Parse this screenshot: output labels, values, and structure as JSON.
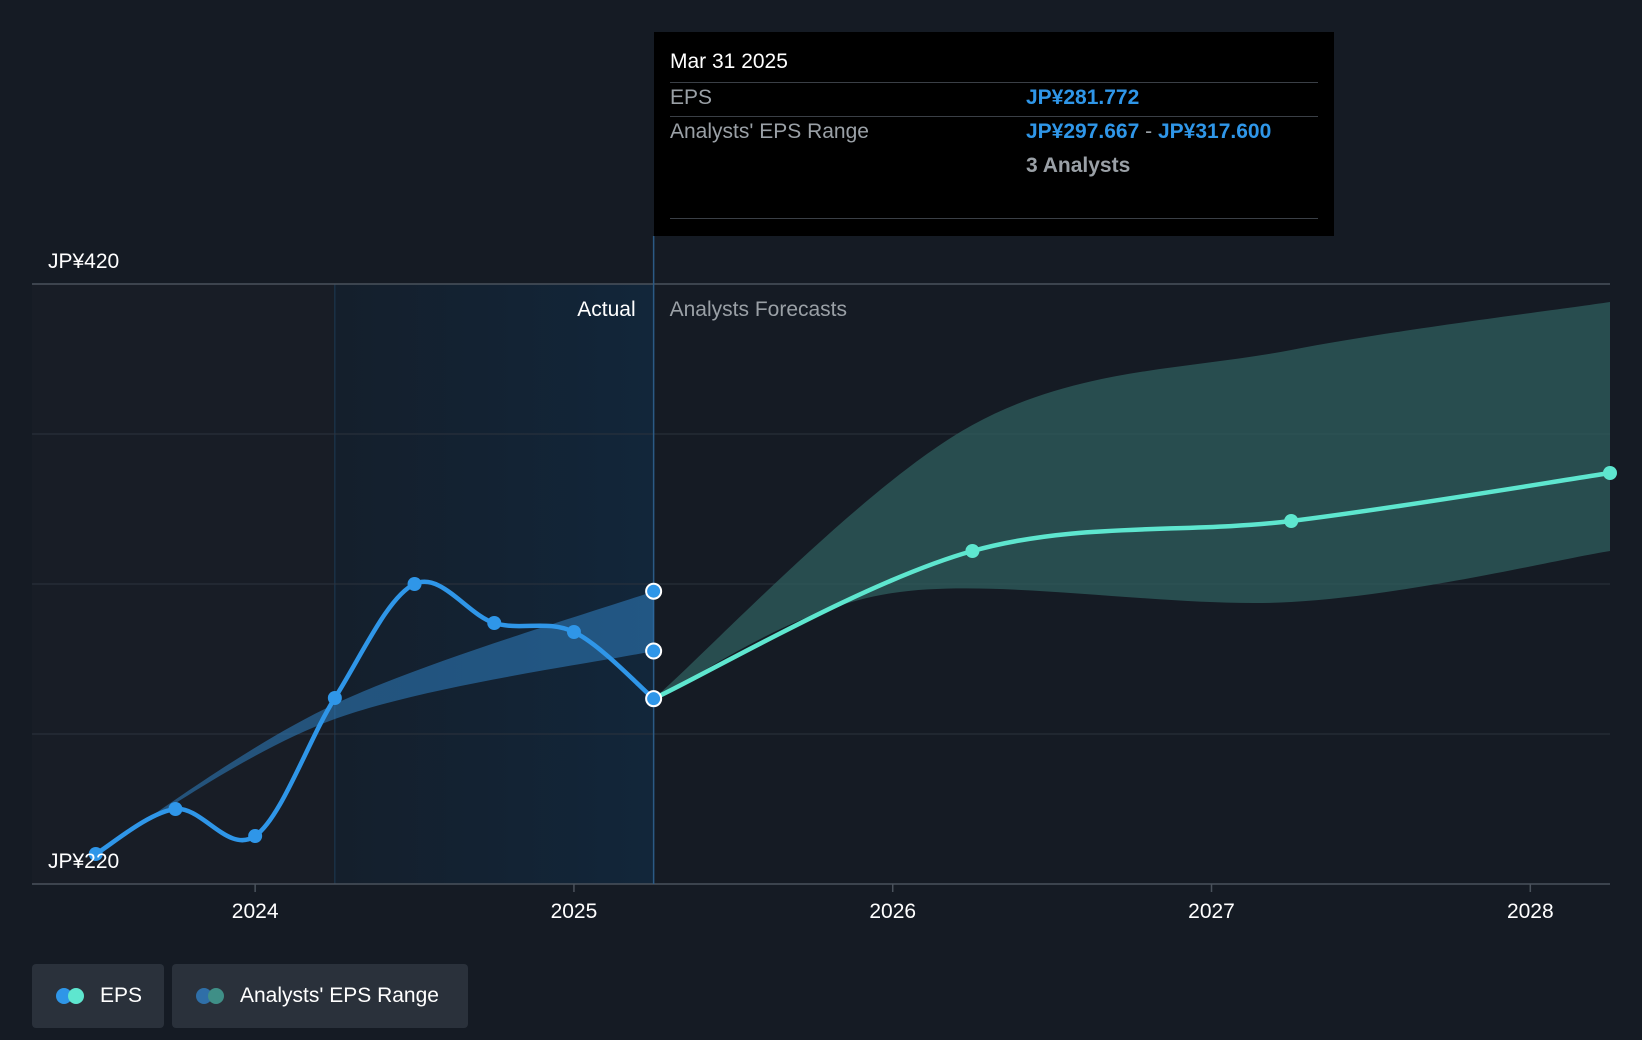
{
  "colors": {
    "background": "#151b24",
    "actual_line": "#2f96e8",
    "forecast_line": "#5ee6cf",
    "actual_band": "#2f7fc1",
    "forecast_band": "#2f5f5e",
    "highlight_region": "#12263a",
    "gridline": "#2c333d"
  },
  "tooltip": {
    "date": "Mar 31 2025",
    "eps_label": "EPS",
    "eps_value": "JP¥281.772",
    "range_label": "Analysts' EPS Range",
    "range_low": "JP¥297.667",
    "range_separator": "-",
    "range_high": "JP¥317.600",
    "analysts": "3 Analysts"
  },
  "legend": [
    {
      "label": "EPS",
      "icon": "eps-legend-icon"
    },
    {
      "label": "Analysts' EPS Range",
      "icon": "range-legend-icon"
    }
  ],
  "chart_data": {
    "type": "line",
    "title": "",
    "xlabel": "",
    "ylabel": "",
    "ylim": [
      220,
      420
    ],
    "y_tick_labels": [
      "JP¥420",
      "JP¥220"
    ],
    "y_gridlines": [
      220,
      270,
      320,
      370,
      420
    ],
    "x_ticks": [
      {
        "label": "2024",
        "x": 2024.0
      },
      {
        "label": "2025",
        "x": 2025.0
      },
      {
        "label": "2026",
        "x": 2026.0
      },
      {
        "label": "2027",
        "x": 2027.0
      },
      {
        "label": "2028",
        "x": 2028.0
      }
    ],
    "xlim": [
      2023.3,
      2028.25
    ],
    "region_labels": {
      "actual": "Actual",
      "forecast": "Analysts Forecasts"
    },
    "highlight_region": {
      "start": 2024.25,
      "end": 2025.25
    },
    "series": [
      {
        "name": "EPS",
        "kind": "actual",
        "points": [
          {
            "x": 2023.5,
            "y": 230
          },
          {
            "x": 2023.75,
            "y": 245
          },
          {
            "x": 2024.0,
            "y": 236
          },
          {
            "x": 2024.25,
            "y": 282
          },
          {
            "x": 2024.5,
            "y": 320
          },
          {
            "x": 2024.75,
            "y": 307
          },
          {
            "x": 2025.0,
            "y": 304
          },
          {
            "x": 2025.25,
            "y": 281.772
          }
        ]
      },
      {
        "name": "EPS",
        "kind": "forecast",
        "points": [
          {
            "x": 2025.25,
            "y": 281.772
          },
          {
            "x": 2026.25,
            "y": 331
          },
          {
            "x": 2027.25,
            "y": 341
          },
          {
            "x": 2028.25,
            "y": 357
          }
        ]
      }
    ],
    "ranges": [
      {
        "name": "Analysts' EPS Range",
        "kind": "actual",
        "low": [
          [
            2023.5,
            230
          ],
          [
            2024.25,
            275
          ],
          [
            2025.25,
            297.667
          ]
        ],
        "high": [
          [
            2023.5,
            230
          ],
          [
            2024.25,
            280
          ],
          [
            2025.25,
            317.6
          ]
        ]
      },
      {
        "name": "Analysts' EPS Range",
        "kind": "forecast",
        "low": [
          [
            2025.25,
            281.772
          ],
          [
            2026.0,
            317
          ],
          [
            2027.25,
            314
          ],
          [
            2028.25,
            331
          ]
        ],
        "high": [
          [
            2025.25,
            281.772
          ],
          [
            2026.25,
            373
          ],
          [
            2027.25,
            398
          ],
          [
            2028.25,
            414
          ]
        ]
      }
    ]
  }
}
